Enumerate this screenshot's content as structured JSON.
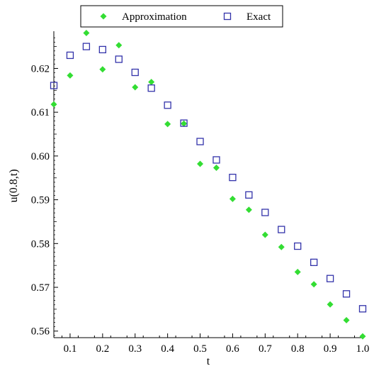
{
  "chart_data": {
    "type": "scatter",
    "xlabel": "t",
    "ylabel": "u(0.8,t)",
    "xlim": [
      0.05,
      1.0
    ],
    "ylim": [
      0.5585,
      0.6285
    ],
    "x_ticks": [
      "0.1",
      "0.2",
      "0.3",
      "0.4",
      "0.5",
      "0.6",
      "0.7",
      "0.8",
      "0.9",
      "1.0"
    ],
    "x_tick_values": [
      0.1,
      0.2,
      0.3,
      0.4,
      0.5,
      0.6,
      0.7,
      0.8,
      0.9,
      1.0
    ],
    "y_ticks": [
      "0.56",
      "0.57",
      "0.58",
      "0.59",
      "0.60",
      "0.61",
      "0.62"
    ],
    "y_tick_values": [
      0.56,
      0.57,
      0.58,
      0.59,
      0.6,
      0.61,
      0.62
    ],
    "legend_position": "top",
    "grid": false,
    "series": [
      {
        "name": "Approximation",
        "marker": "diamond",
        "color": "#33dd33",
        "x": [
          0.05,
          0.1,
          0.15,
          0.2,
          0.25,
          0.3,
          0.35,
          0.4,
          0.45,
          0.5,
          0.55,
          0.6,
          0.65,
          0.7,
          0.75,
          0.8,
          0.85,
          0.9,
          0.95,
          1.0
        ],
        "y": [
          0.6118,
          0.6184,
          0.6281,
          0.6198,
          0.6253,
          0.6157,
          0.6169,
          0.6073,
          0.6074,
          0.5982,
          0.5973,
          0.5902,
          0.5877,
          0.582,
          0.5792,
          0.5735,
          0.5707,
          0.5661,
          0.5625,
          0.5588
        ]
      },
      {
        "name": "Exact",
        "marker": "square",
        "color": "#3333aa",
        "x": [
          0.05,
          0.1,
          0.15,
          0.2,
          0.25,
          0.3,
          0.35,
          0.4,
          0.45,
          0.5,
          0.55,
          0.6,
          0.65,
          0.7,
          0.75,
          0.8,
          0.85,
          0.9,
          0.95,
          1.0
        ],
        "y": [
          0.6161,
          0.623,
          0.625,
          0.6243,
          0.6221,
          0.6191,
          0.6155,
          0.6116,
          0.6075,
          0.6033,
          0.5991,
          0.5951,
          0.5911,
          0.5871,
          0.5832,
          0.5794,
          0.5757,
          0.572,
          0.5685,
          0.5651
        ]
      }
    ]
  }
}
